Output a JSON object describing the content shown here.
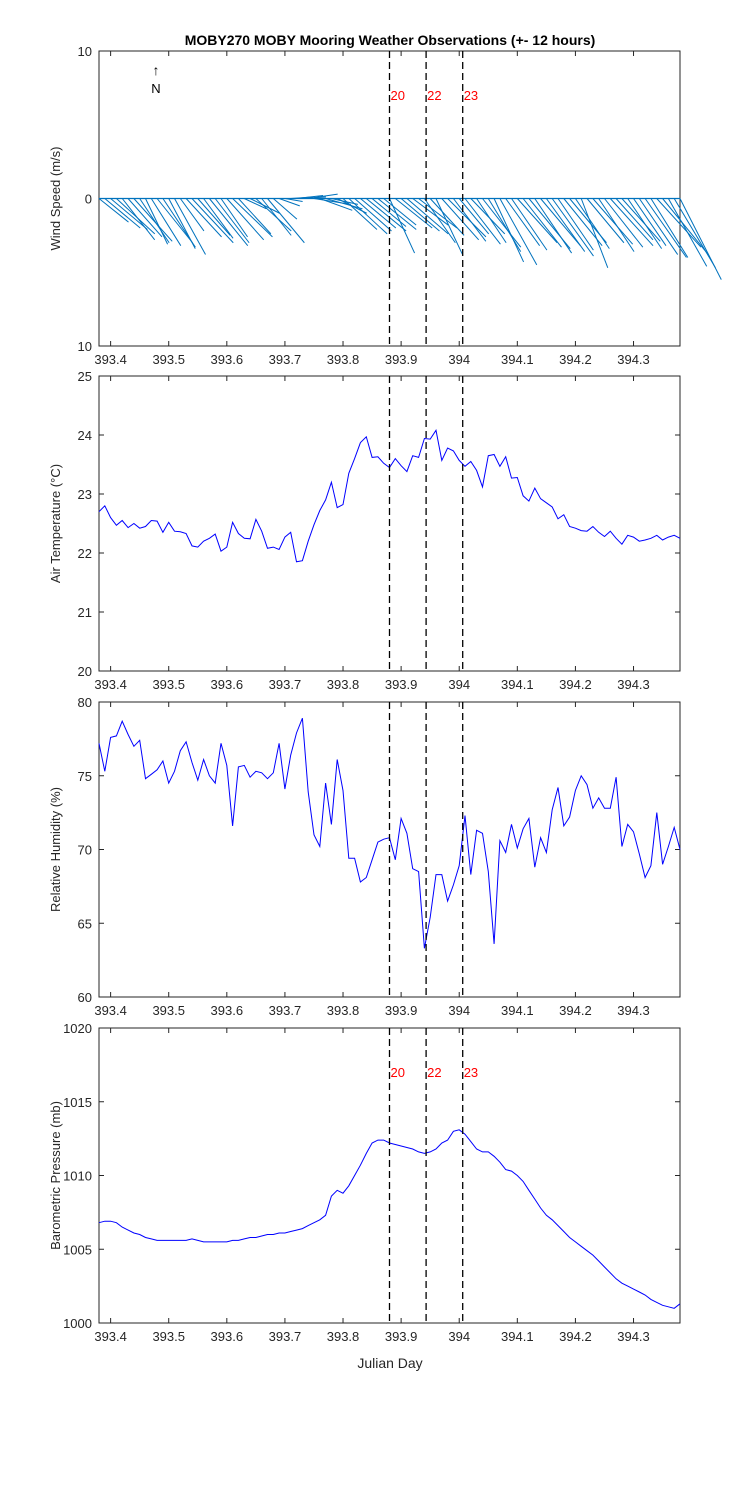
{
  "figure_title": "MOBY270 MOBY Mooring Weather Observations (+- 12 hours)",
  "xlabel": "Julian Day",
  "x_ticks": [
    393.4,
    393.5,
    393.6,
    393.7,
    393.8,
    393.9,
    394.0,
    394.1,
    394.2,
    394.3
  ],
  "x_tick_labels": [
    "393.4",
    "393.5",
    "393.6",
    "393.7",
    "393.8",
    "393.9",
    "394",
    "394.1",
    "394.2",
    "394.3"
  ],
  "xlim": [
    393.38,
    394.38
  ],
  "markers": [
    {
      "x": 393.88,
      "label": "20"
    },
    {
      "x": 393.943,
      "label": "22"
    },
    {
      "x": 394.006,
      "label": "23"
    }
  ],
  "north_label": "N",
  "colors": {
    "line": "#0000ff",
    "wind": "#0072bd",
    "marker_label": "#ff0000",
    "axis": "#262626"
  },
  "chart_data": [
    {
      "type": "line",
      "title": "Wind",
      "ylabel": "Wind Speed (m/s)",
      "ylim": [
        -10,
        10
      ],
      "y_ticks": [
        10,
        0,
        -10
      ],
      "y_tick_labels": [
        "10",
        "0",
        "10"
      ],
      "vectors": [
        [
          393.38,
          2.0,
          -1.6
        ],
        [
          393.39,
          2.4,
          -2.0
        ],
        [
          393.4,
          2.5,
          -2.1
        ],
        [
          393.41,
          2.6,
          -2.4
        ],
        [
          393.42,
          2.2,
          -2.8
        ],
        [
          393.43,
          2.3,
          -2.6
        ],
        [
          393.44,
          2.6,
          -2.9
        ],
        [
          393.45,
          2.0,
          -3.0
        ],
        [
          393.46,
          1.5,
          -3.1
        ],
        [
          393.47,
          2.0,
          -3.2
        ],
        [
          393.48,
          2.4,
          -3.0
        ],
        [
          393.49,
          2.2,
          -3.3
        ],
        [
          393.5,
          1.8,
          -3.4
        ],
        [
          393.51,
          2.1,
          -3.8
        ],
        [
          393.52,
          1.6,
          -2.2
        ],
        [
          393.53,
          2.4,
          -2.6
        ],
        [
          393.54,
          2.8,
          -3.0
        ],
        [
          393.55,
          2.2,
          -2.5
        ],
        [
          393.56,
          2.0,
          -2.7
        ],
        [
          393.57,
          2.6,
          -3.2
        ],
        [
          393.58,
          2.3,
          -3.0
        ],
        [
          393.59,
          1.8,
          -2.6
        ],
        [
          393.6,
          2.5,
          -2.8
        ],
        [
          393.61,
          2.7,
          -2.6
        ],
        [
          393.62,
          2.2,
          -2.4
        ],
        [
          393.63,
          1.5,
          -0.7
        ],
        [
          393.64,
          2.0,
          -1.0
        ],
        [
          393.65,
          2.4,
          -2.2
        ],
        [
          393.66,
          2.0,
          -2.5
        ],
        [
          393.67,
          2.5,
          -3.0
        ],
        [
          393.68,
          1.6,
          -1.4
        ],
        [
          393.69,
          1.4,
          -0.5
        ],
        [
          393.7,
          1.2,
          -0.2
        ],
        [
          393.71,
          1.5,
          0.1
        ],
        [
          393.72,
          1.8,
          0.2
        ],
        [
          393.73,
          1.6,
          0.1
        ],
        [
          393.74,
          2.0,
          0.3
        ],
        [
          393.75,
          2.5,
          -0.4
        ],
        [
          393.76,
          2.2,
          -0.8
        ],
        [
          393.77,
          2.5,
          -0.7
        ],
        [
          393.78,
          1.8,
          -0.4
        ],
        [
          393.79,
          2.0,
          -1.0
        ],
        [
          393.8,
          2.3,
          -2.1
        ],
        [
          393.81,
          2.6,
          -2.4
        ],
        [
          393.82,
          2.5,
          -2.2
        ],
        [
          393.83,
          2.4,
          -2.0
        ],
        [
          393.84,
          2.7,
          -2.2
        ],
        [
          393.85,
          2.3,
          -1.9
        ],
        [
          393.86,
          2.6,
          -2.1
        ],
        [
          393.87,
          2.2,
          -1.8
        ],
        [
          393.88,
          1.7,
          -3.7
        ],
        [
          393.89,
          2.5,
          -2.0
        ],
        [
          393.9,
          2.6,
          -2.2
        ],
        [
          393.91,
          2.8,
          -2.4
        ],
        [
          393.92,
          2.4,
          -1.8
        ],
        [
          393.93,
          2.6,
          -2.0
        ],
        [
          393.94,
          2.1,
          -3.0
        ],
        [
          393.95,
          2.3,
          -2.5
        ],
        [
          393.96,
          1.8,
          -3.8
        ],
        [
          393.97,
          2.5,
          -2.8
        ],
        [
          393.98,
          2.6,
          -2.6
        ],
        [
          393.99,
          2.2,
          -2.9
        ],
        [
          394.0,
          2.0,
          -2.4
        ],
        [
          394.01,
          2.4,
          -3.1
        ],
        [
          394.02,
          2.3,
          -2.4
        ],
        [
          394.03,
          2.0,
          -3.0
        ],
        [
          394.04,
          2.6,
          -3.3
        ],
        [
          394.05,
          2.2,
          -3.6
        ],
        [
          394.06,
          2.0,
          -4.3
        ],
        [
          394.07,
          2.5,
          -4.5
        ],
        [
          394.08,
          2.3,
          -3.2
        ],
        [
          394.09,
          2.4,
          -3.5
        ],
        [
          394.1,
          2.7,
          -3.0
        ],
        [
          394.11,
          2.6,
          -3.3
        ],
        [
          394.12,
          2.8,
          -3.4
        ],
        [
          394.13,
          2.5,
          -3.7
        ],
        [
          394.14,
          2.7,
          -3.2
        ],
        [
          394.15,
          2.6,
          -3.6
        ],
        [
          394.16,
          2.8,
          -3.9
        ],
        [
          394.17,
          2.4,
          -3.5
        ],
        [
          394.18,
          2.6,
          -3.2
        ],
        [
          394.19,
          2.5,
          -3.0
        ],
        [
          394.2,
          2.3,
          -3.4
        ],
        [
          394.21,
          1.8,
          -4.7
        ],
        [
          394.22,
          2.5,
          -3.0
        ],
        [
          394.23,
          2.7,
          -3.1
        ],
        [
          394.24,
          2.4,
          -3.6
        ],
        [
          394.25,
          2.6,
          -3.3
        ],
        [
          394.26,
          2.9,
          -3.2
        ],
        [
          394.27,
          2.5,
          -2.8
        ],
        [
          394.28,
          2.6,
          -2.9
        ],
        [
          394.29,
          2.3,
          -3.4
        ],
        [
          394.3,
          2.2,
          -3.2
        ],
        [
          394.31,
          2.6,
          -3.8
        ],
        [
          394.32,
          2.8,
          -4.0
        ],
        [
          394.33,
          2.5,
          -4.0
        ],
        [
          394.34,
          3.0,
          -3.3
        ],
        [
          394.35,
          3.1,
          -3.8
        ],
        [
          394.36,
          2.6,
          -4.6
        ],
        [
          394.37,
          2.8,
          -4.7
        ],
        [
          394.38,
          2.8,
          -5.5
        ]
      ]
    },
    {
      "type": "line",
      "ylabel": "Air Temperature (°C)",
      "ylim": [
        20,
        25
      ],
      "y_ticks": [
        20,
        21,
        22,
        23,
        24,
        25
      ],
      "x": [
        393.38,
        393.39,
        393.4,
        393.41,
        393.42,
        393.43,
        393.44,
        393.45,
        393.46,
        393.47,
        393.48,
        393.49,
        393.5,
        393.51,
        393.52,
        393.53,
        393.54,
        393.55,
        393.56,
        393.57,
        393.58,
        393.59,
        393.6,
        393.61,
        393.62,
        393.63,
        393.64,
        393.65,
        393.66,
        393.67,
        393.68,
        393.69,
        393.7,
        393.71,
        393.72,
        393.73,
        393.74,
        393.75,
        393.76,
        393.77,
        393.78,
        393.79,
        393.8,
        393.81,
        393.82,
        393.83,
        393.84,
        393.85,
        393.86,
        393.87,
        393.88,
        393.89,
        393.9,
        393.91,
        393.92,
        393.93,
        393.94,
        393.95,
        393.96,
        393.97,
        393.98,
        393.99,
        394.0,
        394.01,
        394.02,
        394.03,
        394.04,
        394.05,
        394.06,
        394.07,
        394.08,
        394.09,
        394.1,
        394.11,
        394.12,
        394.13,
        394.14,
        394.15,
        394.16,
        394.17,
        394.18,
        394.19,
        394.2,
        394.21,
        394.22,
        394.23,
        394.24,
        394.25,
        394.26,
        394.27,
        394.28,
        394.29,
        394.3,
        394.31,
        394.32,
        394.33,
        394.34,
        394.35,
        394.36,
        394.37,
        394.38
      ],
      "y": [
        22.7,
        22.8,
        22.6,
        22.47,
        22.55,
        22.43,
        22.5,
        22.42,
        22.45,
        22.55,
        22.54,
        22.35,
        22.52,
        22.37,
        22.36,
        22.33,
        22.12,
        22.1,
        22.2,
        22.25,
        22.32,
        22.03,
        22.1,
        22.52,
        22.33,
        22.25,
        22.24,
        22.57,
        22.37,
        22.08,
        22.1,
        22.06,
        22.27,
        22.35,
        21.85,
        21.87,
        22.2,
        22.48,
        22.72,
        22.9,
        23.2,
        22.77,
        22.82,
        23.35,
        23.6,
        23.87,
        23.97,
        23.62,
        23.63,
        23.52,
        23.45,
        23.6,
        23.48,
        23.38,
        23.65,
        23.62,
        23.94,
        23.93,
        24.08,
        23.57,
        23.78,
        23.73,
        23.57,
        23.47,
        23.55,
        23.4,
        23.12,
        23.65,
        23.67,
        23.47,
        23.63,
        23.27,
        23.28,
        22.97,
        22.88,
        23.1,
        22.92,
        22.85,
        22.78,
        22.58,
        22.65,
        22.45,
        22.42,
        22.38,
        22.37,
        22.45,
        22.35,
        22.28,
        22.37,
        22.25,
        22.15,
        22.3,
        22.27,
        22.2,
        22.22,
        22.25,
        22.3,
        22.22,
        22.27,
        22.3,
        22.25
      ]
    },
    {
      "type": "line",
      "ylabel": "Relative Humidity (%)",
      "ylim": [
        60,
        80
      ],
      "y_ticks": [
        60,
        65,
        70,
        75,
        80
      ],
      "x": [
        393.38,
        393.39,
        393.4,
        393.41,
        393.42,
        393.43,
        393.44,
        393.45,
        393.46,
        393.47,
        393.48,
        393.49,
        393.5,
        393.51,
        393.52,
        393.53,
        393.54,
        393.55,
        393.56,
        393.57,
        393.58,
        393.59,
        393.6,
        393.61,
        393.62,
        393.63,
        393.64,
        393.65,
        393.66,
        393.67,
        393.68,
        393.69,
        393.7,
        393.71,
        393.72,
        393.73,
        393.74,
        393.75,
        393.76,
        393.77,
        393.78,
        393.79,
        393.8,
        393.81,
        393.82,
        393.83,
        393.84,
        393.85,
        393.86,
        393.87,
        393.88,
        393.89,
        393.9,
        393.91,
        393.92,
        393.93,
        393.94,
        393.95,
        393.96,
        393.97,
        393.98,
        393.99,
        394.0,
        394.01,
        394.02,
        394.03,
        394.04,
        394.05,
        394.06,
        394.07,
        394.08,
        394.09,
        394.1,
        394.11,
        394.12,
        394.13,
        394.14,
        394.15,
        394.16,
        394.17,
        394.18,
        394.19,
        394.2,
        394.21,
        394.22,
        394.23,
        394.24,
        394.25,
        394.26,
        394.27,
        394.28,
        394.29,
        394.3,
        394.31,
        394.32,
        394.33,
        394.34,
        394.35,
        394.36,
        394.37,
        394.38
      ],
      "y": [
        77.2,
        75.3,
        77.6,
        77.7,
        78.7,
        77.8,
        77.0,
        77.4,
        74.8,
        75.1,
        75.4,
        76.0,
        74.5,
        75.3,
        76.7,
        77.3,
        75.9,
        74.7,
        76.1,
        75.0,
        74.5,
        77.2,
        75.7,
        71.6,
        75.6,
        75.7,
        74.9,
        75.3,
        75.2,
        74.8,
        75.2,
        77.2,
        74.1,
        76.4,
        77.9,
        78.9,
        73.9,
        71.0,
        70.2,
        74.5,
        71.7,
        76.1,
        74.0,
        69.4,
        69.4,
        67.8,
        68.1,
        69.3,
        70.5,
        70.7,
        70.8,
        69.3,
        72.1,
        71.1,
        68.7,
        68.5,
        63.3,
        65.4,
        68.3,
        68.3,
        66.5,
        67.6,
        68.9,
        72.3,
        68.3,
        71.3,
        71.1,
        68.5,
        63.6,
        70.6,
        69.8,
        71.7,
        70.1,
        71.4,
        72.1,
        68.8,
        70.8,
        69.8,
        72.7,
        74.2,
        71.6,
        72.2,
        74.0,
        75.0,
        74.4,
        72.8,
        73.5,
        72.8,
        72.8,
        74.9,
        70.2,
        71.7,
        71.2,
        69.7,
        68.1,
        68.9,
        72.5,
        69.0,
        70.2,
        71.5,
        70.0
      ]
    },
    {
      "type": "line",
      "ylabel": "Barometric Pressure (mb)",
      "ylim": [
        1000,
        1020
      ],
      "y_ticks": [
        1000,
        1005,
        1010,
        1015,
        1020
      ],
      "x": [
        393.38,
        393.39,
        393.4,
        393.41,
        393.42,
        393.43,
        393.44,
        393.45,
        393.46,
        393.47,
        393.48,
        393.49,
        393.5,
        393.51,
        393.52,
        393.53,
        393.54,
        393.55,
        393.56,
        393.57,
        393.58,
        393.59,
        393.6,
        393.61,
        393.62,
        393.63,
        393.64,
        393.65,
        393.66,
        393.67,
        393.68,
        393.69,
        393.7,
        393.71,
        393.72,
        393.73,
        393.74,
        393.75,
        393.76,
        393.77,
        393.78,
        393.79,
        393.8,
        393.81,
        393.82,
        393.83,
        393.84,
        393.85,
        393.86,
        393.87,
        393.88,
        393.89,
        393.9,
        393.91,
        393.92,
        393.93,
        393.94,
        393.95,
        393.96,
        393.97,
        393.98,
        393.99,
        394.0,
        394.01,
        394.02,
        394.03,
        394.04,
        394.05,
        394.06,
        394.07,
        394.08,
        394.09,
        394.1,
        394.11,
        394.12,
        394.13,
        394.14,
        394.15,
        394.16,
        394.17,
        394.18,
        394.19,
        394.2,
        394.21,
        394.22,
        394.23,
        394.24,
        394.25,
        394.26,
        394.27,
        394.28,
        394.29,
        394.3,
        394.31,
        394.32,
        394.33,
        394.34,
        394.35,
        394.36,
        394.37,
        394.38
      ],
      "y": [
        1006.8,
        1006.9,
        1006.9,
        1006.8,
        1006.5,
        1006.3,
        1006.1,
        1006.0,
        1005.8,
        1005.7,
        1005.6,
        1005.6,
        1005.6,
        1005.6,
        1005.6,
        1005.6,
        1005.7,
        1005.6,
        1005.5,
        1005.5,
        1005.5,
        1005.5,
        1005.5,
        1005.6,
        1005.6,
        1005.7,
        1005.8,
        1005.8,
        1005.9,
        1006.0,
        1006.0,
        1006.1,
        1006.1,
        1006.2,
        1006.3,
        1006.4,
        1006.6,
        1006.8,
        1007.0,
        1007.3,
        1008.6,
        1009.0,
        1008.8,
        1009.3,
        1010.0,
        1010.7,
        1011.5,
        1012.2,
        1012.4,
        1012.4,
        1012.2,
        1012.1,
        1012.0,
        1011.9,
        1011.8,
        1011.6,
        1011.5,
        1011.6,
        1011.8,
        1012.2,
        1012.4,
        1013.0,
        1013.1,
        1012.8,
        1012.3,
        1011.8,
        1011.6,
        1011.6,
        1011.3,
        1010.9,
        1010.4,
        1010.3,
        1010.0,
        1009.6,
        1009.0,
        1008.4,
        1007.8,
        1007.3,
        1007.0,
        1006.6,
        1006.2,
        1005.8,
        1005.5,
        1005.2,
        1004.9,
        1004.6,
        1004.2,
        1003.8,
        1003.4,
        1003.0,
        1002.7,
        1002.5,
        1002.3,
        1002.1,
        1001.9,
        1001.6,
        1001.4,
        1001.2,
        1001.1,
        1001.0,
        1001.3
      ]
    }
  ]
}
